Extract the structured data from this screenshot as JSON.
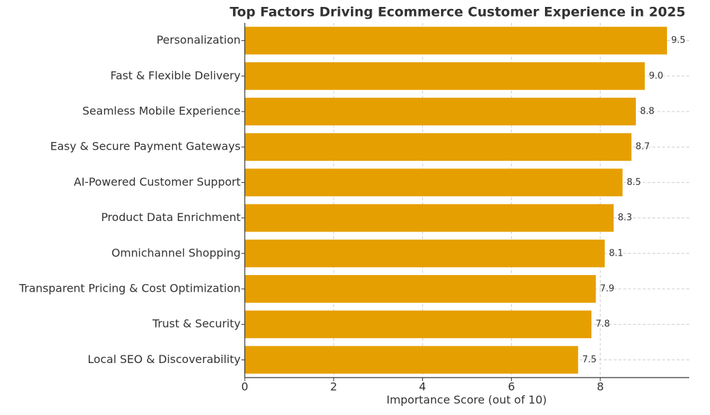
{
  "chart_data": {
    "type": "barh",
    "title": "Top Factors Driving Ecommerce Customer Experience in 2025",
    "x_label": "Importance Score (out of 10)",
    "categories": [
      "Personalization",
      "Fast & Flexible Delivery",
      "Seamless Mobile Experience",
      "Easy & Secure Payment Gateways",
      "AI-Powered Customer Support",
      "Product Data Enrichment",
      "Omnichannel Shopping",
      "Transparent Pricing & Cost Optimization",
      "Trust & Security",
      "Local SEO & Discoverability"
    ],
    "values": [
      9.5,
      9.0,
      8.8,
      8.7,
      8.5,
      8.3,
      8.1,
      7.9,
      7.8,
      7.5
    ],
    "value_labels": [
      "9.5",
      "9.0",
      "8.8",
      "8.7",
      "8.5",
      "8.3",
      "8.1",
      "7.9",
      "7.8",
      "7.5"
    ],
    "color": "#e69f00",
    "xlim": [
      0,
      10
    ],
    "xticks": [
      0,
      2,
      4,
      6,
      8
    ],
    "grid": true
  }
}
